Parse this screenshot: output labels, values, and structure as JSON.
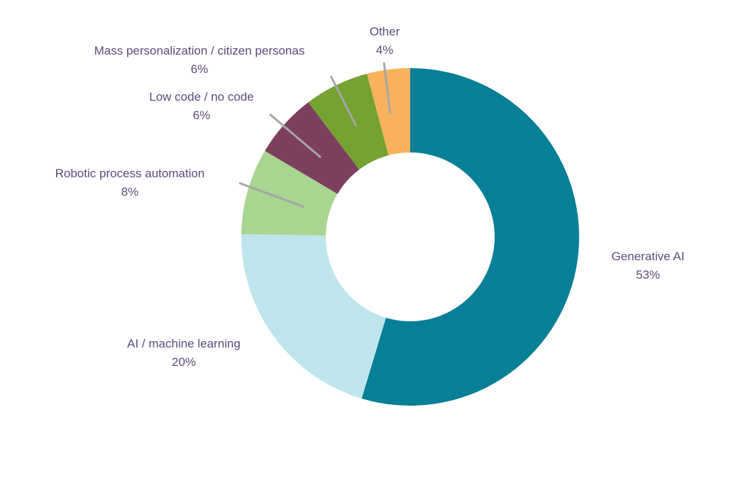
{
  "chart_data": {
    "type": "pie",
    "variant": "donut",
    "title": "",
    "slices": [
      {
        "label": "Generative AI",
        "value": 53,
        "value_label": "53%",
        "color": "#077F96"
      },
      {
        "label": "AI / machine learning",
        "value": 20,
        "value_label": "20%",
        "color": "#BEE5EC"
      },
      {
        "label": "Robotic process automation",
        "value": 8,
        "value_label": "8%",
        "color": "#A8D58F"
      },
      {
        "label": "Low code / no code",
        "value": 6,
        "value_label": "6%",
        "color": "#7C3F5E"
      },
      {
        "label": "Mass personalization / citizen personas",
        "value": 6,
        "value_label": "6%",
        "color": "#76A232"
      },
      {
        "label": "Other",
        "value": 4,
        "value_label": "4%",
        "color": "#F8B35A"
      }
    ],
    "label_color": "#5D4A7A",
    "leader_line_color": "#A6A6A6",
    "legend": "none",
    "direction": "clockwise from top"
  }
}
